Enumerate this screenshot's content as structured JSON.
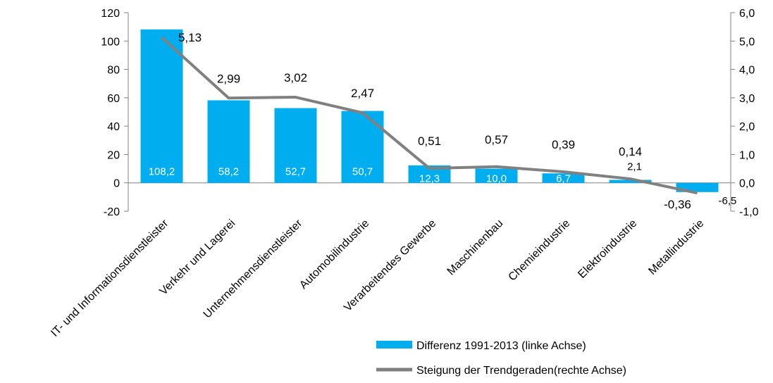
{
  "chart_data": {
    "type": "bar",
    "categories": [
      "IT- und Informationsdienstleister",
      "Verkehr und Lagerei",
      "Unternehmensdienstleister",
      "Automobilindustrie",
      "Verarbeitendes Gewerbe",
      "Maschinenbau",
      "Chemieindustrie",
      "Elektroindustrie",
      "Metallindustrie"
    ],
    "series": [
      {
        "name": "Differenz  1991-2013 (linke Achse)",
        "type": "bar",
        "axis": "left",
        "color": "#00AEEF",
        "values": [
          108.2,
          58.2,
          52.7,
          50.7,
          12.3,
          10.0,
          6.7,
          2.1,
          -6.5
        ],
        "labels": [
          "108,2",
          "58,2",
          "52,7",
          "50,7",
          "12,3",
          "10,0",
          "6,7",
          "2,1",
          "-6,5"
        ]
      },
      {
        "name": "Steigung  der Trendgeraden(rechte Achse)",
        "type": "line",
        "axis": "right",
        "color": "#808080",
        "values": [
          5.13,
          2.99,
          3.02,
          2.47,
          0.51,
          0.57,
          0.39,
          0.14,
          -0.36
        ],
        "labels": [
          "5,13",
          "2,99",
          "3,02",
          "2,47",
          "0,51",
          "0,57",
          "0,39",
          "0,14",
          "-0,36"
        ]
      }
    ],
    "y_left": {
      "min": -20,
      "max": 120,
      "ticks": [
        "-20",
        "0",
        "20",
        "40",
        "60",
        "80",
        "100",
        "120"
      ]
    },
    "y_right": {
      "min": -1,
      "max": 6,
      "ticks": [
        "-1,0",
        "0,0",
        "1,0",
        "2,0",
        "3,0",
        "4,0",
        "5,0",
        "6,0"
      ]
    },
    "grid": false,
    "legend_position": "bottom-right"
  }
}
